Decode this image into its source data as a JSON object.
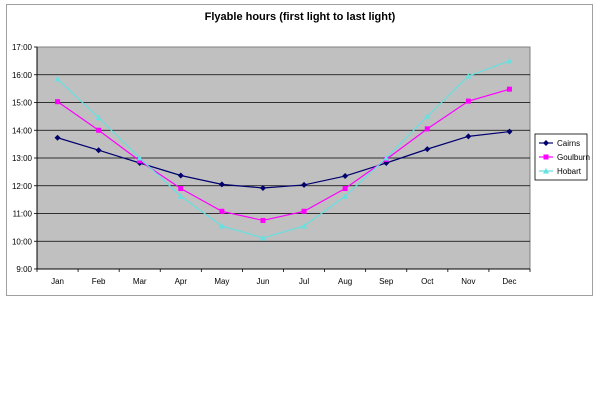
{
  "chart_data": {
    "type": "line",
    "title": "Flyable hours (first light to last light)",
    "categories": [
      "Jan",
      "Feb",
      "Mar",
      "Apr",
      "May",
      "Jun",
      "Jul",
      "Aug",
      "Sep",
      "Oct",
      "Nov",
      "Dec"
    ],
    "y_tick_labels": [
      "9:00",
      "10:00",
      "11:00",
      "12:00",
      "13:00",
      "14:00",
      "15:00",
      "16:00",
      "17:00"
    ],
    "ylim": [
      9,
      17
    ],
    "grid": true,
    "legend_position": "right",
    "series": [
      {
        "name": "Cairns",
        "color": "#00006e",
        "marker": "diamond",
        "values": [
          13.73,
          13.28,
          12.82,
          12.37,
          12.05,
          11.92,
          12.03,
          12.35,
          12.82,
          13.32,
          13.78,
          13.95
        ]
      },
      {
        "name": "Goulburn",
        "color": "#ff00ff",
        "marker": "square",
        "values": [
          15.03,
          14.0,
          12.9,
          11.9,
          11.08,
          10.75,
          11.08,
          11.9,
          12.95,
          14.05,
          15.05,
          15.48
        ]
      },
      {
        "name": "Hobart",
        "color": "#66e0e0",
        "marker": "triangle",
        "values": [
          15.85,
          14.45,
          13.0,
          11.62,
          10.55,
          10.12,
          10.55,
          11.62,
          13.0,
          14.5,
          15.95,
          16.5
        ]
      }
    ]
  }
}
